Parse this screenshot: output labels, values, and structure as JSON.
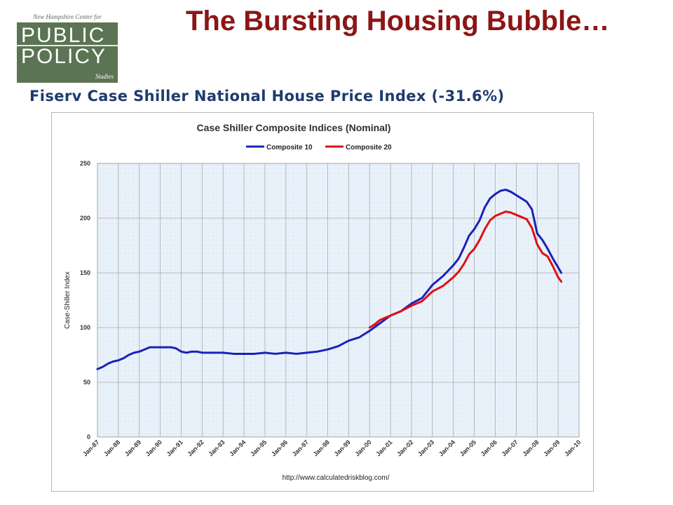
{
  "logo": {
    "top_text": "New Hampshire Center for",
    "line1": "PUBLIC",
    "line2": "POLICY",
    "sub": "Studies"
  },
  "slide": {
    "title": "The Bursting Housing Bubble…",
    "subtitle": "Fiserv Case Shiller National House Price Index (-31.6%)"
  },
  "colors": {
    "title": "#8b1616",
    "subtitle": "#1f3b6e",
    "composite10": "#1a22b8",
    "composite20": "#e01010",
    "plot_bg": "#e8f1fa"
  },
  "chart_data": {
    "type": "line",
    "title": "Case Shiller Composite Indices (Nominal)",
    "ylabel": "Case-Shiller Index",
    "xlabel": "",
    "source": "http://www.calculatedriskblog.com/",
    "ylim": [
      0,
      250
    ],
    "yticks": [
      0,
      50,
      100,
      150,
      200,
      250
    ],
    "xlim": [
      1987,
      2010
    ],
    "xticks": [
      "Jan-87",
      "Jan-88",
      "Jan-89",
      "Jan-90",
      "Jan-91",
      "Jan-92",
      "Jan-93",
      "Jan-94",
      "Jan-95",
      "Jan-96",
      "Jan-97",
      "Jan-98",
      "Jan-99",
      "Jan-00",
      "Jan-01",
      "Jan-02",
      "Jan-03",
      "Jan-04",
      "Jan-05",
      "Jan-06",
      "Jan-07",
      "Jan-08",
      "Jan-09",
      "Jan-10"
    ],
    "grid": true,
    "legend_position": "top-center",
    "series": [
      {
        "name": "Composite 10",
        "color": "#1a22b8",
        "x": [
          1987.0,
          1987.25,
          1987.5,
          1987.75,
          1988.0,
          1988.25,
          1988.5,
          1988.75,
          1989.0,
          1989.25,
          1989.5,
          1989.75,
          1990.0,
          1990.25,
          1990.5,
          1990.75,
          1991.0,
          1991.25,
          1991.5,
          1991.75,
          1992.0,
          1992.5,
          1993.0,
          1993.5,
          1994.0,
          1994.5,
          1995.0,
          1995.5,
          1996.0,
          1996.5,
          1997.0,
          1997.5,
          1998.0,
          1998.5,
          1999.0,
          1999.5,
          2000.0,
          2000.5,
          2001.0,
          2001.5,
          2002.0,
          2002.5,
          2003.0,
          2003.5,
          2004.0,
          2004.25,
          2004.5,
          2004.75,
          2005.0,
          2005.25,
          2005.5,
          2005.75,
          2006.0,
          2006.25,
          2006.5,
          2006.75,
          2007.0,
          2007.25,
          2007.5,
          2007.75,
          2008.0,
          2008.25,
          2008.5,
          2008.75,
          2009.0,
          2009.15
        ],
        "y": [
          62,
          64,
          67,
          69,
          70,
          72,
          75,
          77,
          78,
          80,
          82,
          82,
          82,
          82,
          82,
          81,
          78,
          77,
          78,
          78,
          77,
          77,
          77,
          76,
          76,
          76,
          77,
          76,
          77,
          76,
          77,
          78,
          80,
          83,
          88,
          91,
          97,
          104,
          111,
          115,
          122,
          127,
          139,
          147,
          157,
          163,
          173,
          184,
          190,
          198,
          210,
          218,
          222,
          225,
          226,
          224,
          221,
          218,
          215,
          208,
          186,
          180,
          172,
          163,
          155,
          150
        ]
      },
      {
        "name": "Composite 20",
        "color": "#e01010",
        "x": [
          2000.0,
          2000.25,
          2000.5,
          2000.75,
          2001.0,
          2001.5,
          2002.0,
          2002.5,
          2003.0,
          2003.5,
          2004.0,
          2004.25,
          2004.5,
          2004.75,
          2005.0,
          2005.25,
          2005.5,
          2005.75,
          2006.0,
          2006.25,
          2006.5,
          2006.75,
          2007.0,
          2007.25,
          2007.5,
          2007.75,
          2008.0,
          2008.25,
          2008.5,
          2008.75,
          2009.0,
          2009.15
        ],
        "y": [
          100,
          103,
          107,
          109,
          111,
          115,
          120,
          124,
          133,
          138,
          146,
          151,
          158,
          167,
          172,
          180,
          190,
          198,
          202,
          204,
          206,
          205,
          203,
          201,
          199,
          191,
          176,
          168,
          165,
          156,
          146,
          142
        ]
      }
    ]
  }
}
